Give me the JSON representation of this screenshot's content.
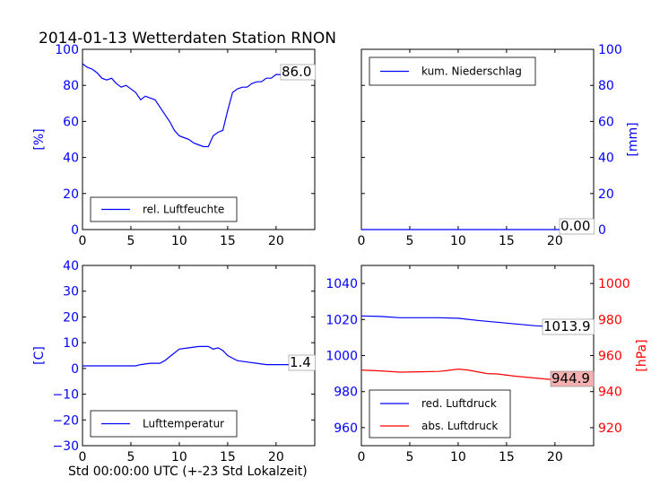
{
  "title": "2014-01-13 Wetterdaten Station RNON",
  "xlabel": "Std 00:00:00 UTC (+-23 Std Lokalzeit)",
  "colors": {
    "blue": "#0000ff",
    "red": "#ff0000",
    "readout_red_bg": "#f4b0b0"
  },
  "chart_data": [
    {
      "type": "line",
      "xlim": [
        0,
        24
      ],
      "xticks": [
        0,
        5,
        10,
        15,
        20
      ],
      "ylim": [
        0,
        100
      ],
      "yticks": [
        0,
        20,
        40,
        60,
        80,
        100
      ],
      "ylabel": "[%]",
      "readout": "86.0",
      "legend_loc": "lower-left",
      "series": [
        {
          "name": "rel. Luftfeuchte",
          "color": "#0000ff",
          "x": [
            0,
            0.5,
            1,
            1.5,
            2,
            2.5,
            3,
            3.5,
            4,
            4.5,
            5,
            5.5,
            6,
            6.5,
            7,
            7.5,
            8,
            8.5,
            9,
            9.5,
            10,
            10.5,
            11,
            11.5,
            12,
            12.5,
            13,
            13.5,
            14,
            14.5,
            15,
            15.5,
            16,
            16.5,
            17,
            17.5,
            18,
            18.5,
            19,
            19.5,
            20,
            20.5,
            21,
            21.5,
            22,
            22.5,
            23,
            23.5,
            24
          ],
          "values": [
            92,
            90,
            89,
            87,
            84,
            83,
            84,
            81,
            79,
            80,
            78,
            76,
            72,
            74,
            73,
            72,
            68,
            64,
            60,
            55,
            52,
            51,
            50,
            48,
            47,
            46,
            46,
            52,
            54,
            55,
            66,
            76,
            78,
            79,
            79,
            81,
            82,
            82,
            84,
            84,
            86,
            86,
            86,
            86,
            86,
            87,
            87,
            87,
            87
          ]
        }
      ]
    },
    {
      "type": "line",
      "xlim": [
        0,
        24
      ],
      "xticks": [
        0,
        5,
        10,
        15,
        20
      ],
      "ylim": [
        0,
        100
      ],
      "yticks": [
        0,
        20,
        40,
        60,
        80,
        100
      ],
      "ylabel": "[mm]",
      "readout": "0.00",
      "legend_loc": "upper-left",
      "series": [
        {
          "name": "kum. Niederschlag",
          "color": "#0000ff",
          "x": [
            0,
            24
          ],
          "values": [
            0,
            0
          ]
        }
      ]
    },
    {
      "type": "line",
      "xlim": [
        0,
        24
      ],
      "xticks": [
        0,
        5,
        10,
        15,
        20
      ],
      "ylim": [
        -30,
        40
      ],
      "yticks": [
        -30,
        -20,
        -10,
        0,
        10,
        20,
        30,
        40
      ],
      "ylabel": "[C]",
      "readout": "1.4",
      "legend_loc": "lower-left",
      "series": [
        {
          "name": "Lufttemperatur",
          "color": "#0000ff",
          "x": [
            0,
            1,
            2,
            3,
            4,
            5,
            5.5,
            6,
            7,
            8,
            8.5,
            9,
            9.5,
            10,
            11,
            12,
            13,
            13.5,
            14,
            14.5,
            15,
            15.5,
            16,
            17,
            18,
            19,
            20,
            21,
            22,
            23,
            24
          ],
          "values": [
            1,
            1,
            1,
            1,
            1,
            1,
            1,
            1.5,
            2,
            2,
            3,
            4.5,
            6,
            7.5,
            8,
            8.5,
            8.5,
            7.5,
            8,
            7,
            5,
            4,
            3,
            2.5,
            2,
            1.5,
            1.5,
            1.5,
            1.5,
            1.4,
            1.4
          ]
        }
      ]
    },
    {
      "type": "line",
      "xlim": [
        0,
        24
      ],
      "xticks": [
        0,
        5,
        10,
        15,
        20
      ],
      "ylim": [
        950,
        1050
      ],
      "yticks": [
        960,
        980,
        1000,
        1020,
        1040
      ],
      "y2lim": [
        910,
        1010
      ],
      "y2ticks": [
        920,
        940,
        960,
        980,
        1000
      ],
      "y2label": "[hPa]",
      "readouts": [
        "1013.9",
        "944.9"
      ],
      "legend_loc": "lower-left",
      "series": [
        {
          "name": "red. Luftdruck",
          "color": "#0000ff",
          "axis": "left",
          "x": [
            0,
            2,
            4,
            6,
            8,
            10,
            12,
            14,
            16,
            18,
            20,
            22,
            24
          ],
          "values": [
            1022,
            1021.7,
            1021,
            1021,
            1021,
            1020.7,
            1019.5,
            1018.5,
            1017.5,
            1016.5,
            1016,
            1015,
            1014
          ]
        },
        {
          "name": "abs. Luftdruck",
          "color": "#ff0000",
          "axis": "right",
          "x": [
            0,
            2,
            4,
            6,
            8,
            9,
            10,
            11,
            12,
            13,
            14,
            16,
            18,
            20,
            22,
            24
          ],
          "values": [
            952,
            951.5,
            950.8,
            951,
            951.2,
            951.8,
            952.5,
            952,
            951,
            950,
            949.8,
            948.5,
            947.5,
            946.5,
            945.5,
            945
          ]
        }
      ]
    }
  ]
}
